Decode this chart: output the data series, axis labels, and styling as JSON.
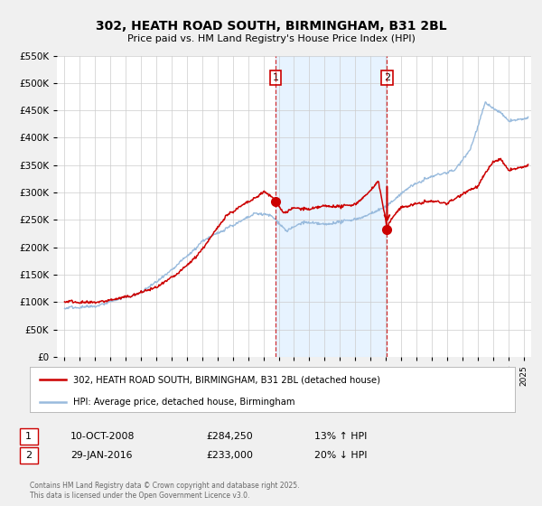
{
  "title": "302, HEATH ROAD SOUTH, BIRMINGHAM, B31 2BL",
  "subtitle": "Price paid vs. HM Land Registry's House Price Index (HPI)",
  "background_color": "#f0f0f0",
  "plot_bg_color": "#ffffff",
  "legend_label_red": "302, HEATH ROAD SOUTH, BIRMINGHAM, B31 2BL (detached house)",
  "legend_label_blue": "HPI: Average price, detached house, Birmingham",
  "transaction1_date": "10-OCT-2008",
  "transaction1_price": "£284,250",
  "transaction1_hpi": "13% ↑ HPI",
  "transaction2_date": "29-JAN-2016",
  "transaction2_price": "£233,000",
  "transaction2_hpi": "20% ↓ HPI",
  "transaction1_x": 2008.78,
  "transaction1_y": 284250,
  "transaction2_x": 2016.08,
  "transaction2_y": 233000,
  "vline1_x": 2008.78,
  "vline2_x": 2016.08,
  "ylim": [
    0,
    550000
  ],
  "xlim": [
    1994.5,
    2025.5
  ],
  "red_color": "#cc0000",
  "blue_color": "#99bbdd",
  "vline_color": "#cc0000",
  "shade_color": "#ddeeff",
  "footnote": "Contains HM Land Registry data © Crown copyright and database right 2025.\nThis data is licensed under the Open Government Licence v3.0."
}
